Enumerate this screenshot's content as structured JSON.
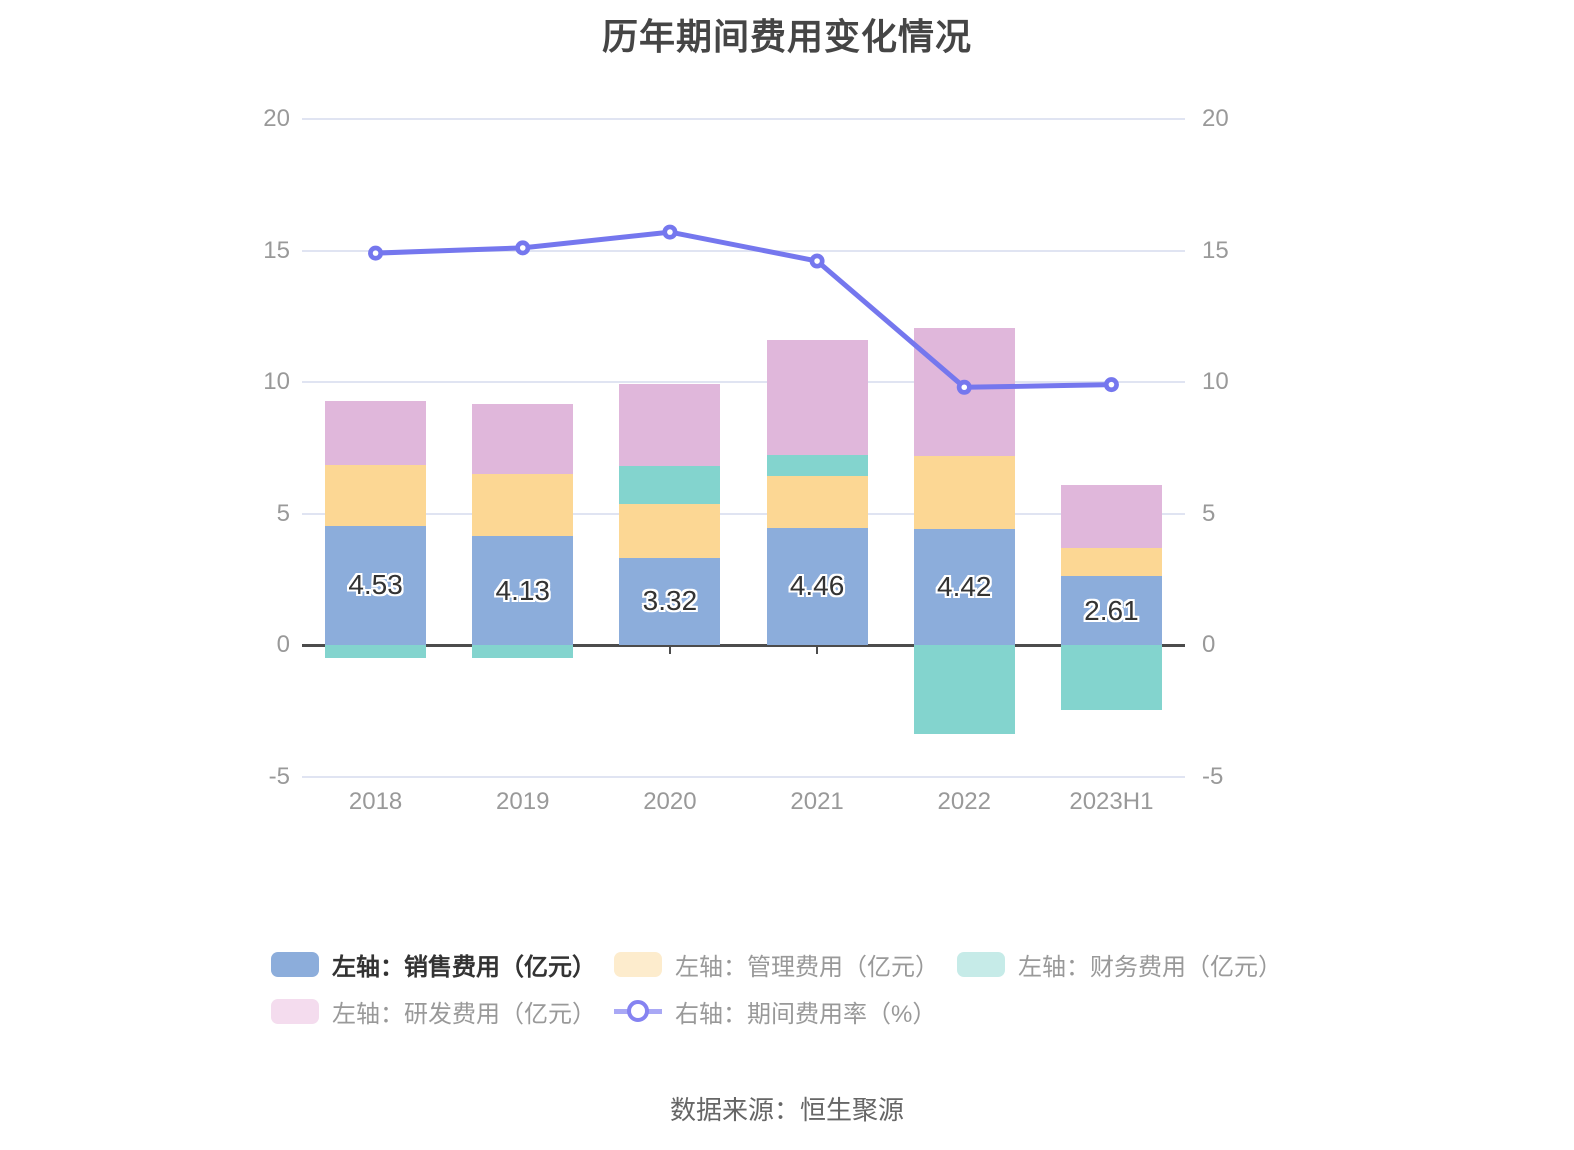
{
  "title": "历年期间费用变化情况",
  "source_note": "数据来源：恒生聚源",
  "colors": {
    "sales_bar": "#8caddb",
    "admin_bar": "#fcd794",
    "finance_bar": "#83d4ce",
    "rd_bar": "#e0b7db",
    "rate_line": "#7577ee",
    "grid_line": "#e0e4f2",
    "axis_line": "#4c4c4c",
    "axis_label": "#999999",
    "title_text": "#454545"
  },
  "chart_data": {
    "type": "combo-stacked-bar-line",
    "categories": [
      "2018",
      "2019",
      "2020",
      "2021",
      "2022",
      "2023H1"
    ],
    "bar_series": [
      {
        "key": "sales-expense",
        "name": "左轴：销售费用（亿元）",
        "color": "#8caddb",
        "legend_color": "#8caddb",
        "legend_active": true,
        "values": [
          4.53,
          4.13,
          3.32,
          4.46,
          4.42,
          2.61
        ],
        "data_labels": [
          "4.53",
          "4.13",
          "3.32",
          "4.46",
          "4.42",
          "2.61"
        ]
      },
      {
        "key": "admin-expense",
        "name": "左轴：管理费用（亿元）",
        "color": "#fcd794",
        "legend_color": "#fdeccd",
        "legend_active": false,
        "values": [
          2.3,
          2.39,
          2.03,
          1.97,
          2.77,
          1.09
        ]
      },
      {
        "key": "finance-expense",
        "name": "左轴：财务费用（亿元）",
        "color": "#83d4ce",
        "legend_color": "#c6ebe8",
        "legend_active": false,
        "values": [
          -0.5,
          -0.5,
          1.46,
          0.8,
          -3.4,
          -2.48
        ]
      },
      {
        "key": "rd-expense",
        "name": "左轴：研发费用（亿元）",
        "color": "#e0b7db",
        "legend_color": "#f4dcee",
        "legend_active": false,
        "values": [
          2.45,
          2.64,
          3.11,
          4.36,
          4.85,
          2.37
        ]
      }
    ],
    "line_series": {
      "key": "period-expense-rate",
      "name": "右轴：期间费用率（%）",
      "color": "#7577ee",
      "values": [
        14.9,
        15.1,
        15.7,
        14.6,
        9.8,
        9.9
      ]
    },
    "left_axis_ticks": [
      20,
      15,
      10,
      5,
      0,
      -5
    ],
    "right_axis_ticks": [
      20,
      15,
      10,
      5,
      0,
      -5
    ],
    "left_axis_range": [
      -5,
      20
    ],
    "right_axis_range": [
      -5,
      20
    ],
    "stack_order": "bars stacked in series order, negatives below zero",
    "grid": true,
    "legend_position": "bottom"
  }
}
